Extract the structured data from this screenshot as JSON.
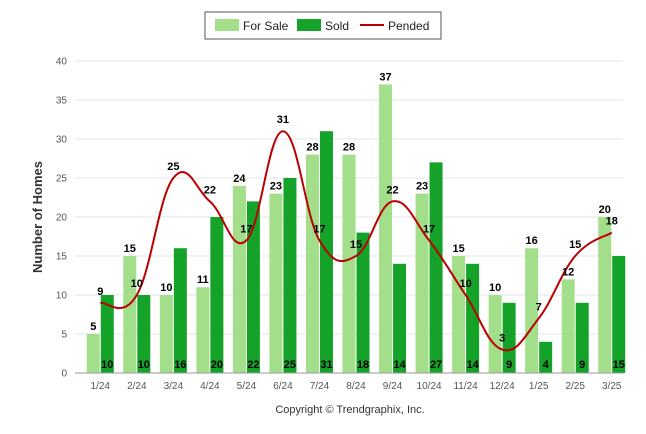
{
  "chart_data": {
    "type": "bar",
    "categories": [
      "1/24",
      "2/24",
      "3/24",
      "4/24",
      "5/24",
      "6/24",
      "7/24",
      "8/24",
      "9/24",
      "10/24",
      "11/24",
      "12/24",
      "1/25",
      "2/25",
      "3/25"
    ],
    "series": [
      {
        "name": "For Sale",
        "type": "bar",
        "color": "#a3df8a",
        "values": [
          5,
          15,
          10,
          11,
          24,
          23,
          28,
          28,
          37,
          23,
          15,
          10,
          16,
          12,
          20
        ]
      },
      {
        "name": "Sold",
        "type": "bar",
        "color": "#14a228",
        "values": [
          10,
          10,
          16,
          20,
          22,
          25,
          31,
          18,
          14,
          27,
          14,
          9,
          4,
          9,
          15
        ]
      },
      {
        "name": "Pended",
        "type": "line",
        "color": "#bb0000",
        "values": [
          9,
          10,
          25,
          22,
          17,
          31,
          17,
          15,
          22,
          17,
          10,
          3,
          7,
          15,
          18
        ]
      }
    ],
    "ylabel": "Number of Homes",
    "ylim": [
      0,
      40
    ],
    "yticks": [
      0,
      5,
      10,
      15,
      20,
      25,
      30,
      35,
      40
    ],
    "grid": true,
    "legend_position": "top-center"
  },
  "footer": {
    "copyright": "Copyright © Trendgraphix, Inc."
  }
}
